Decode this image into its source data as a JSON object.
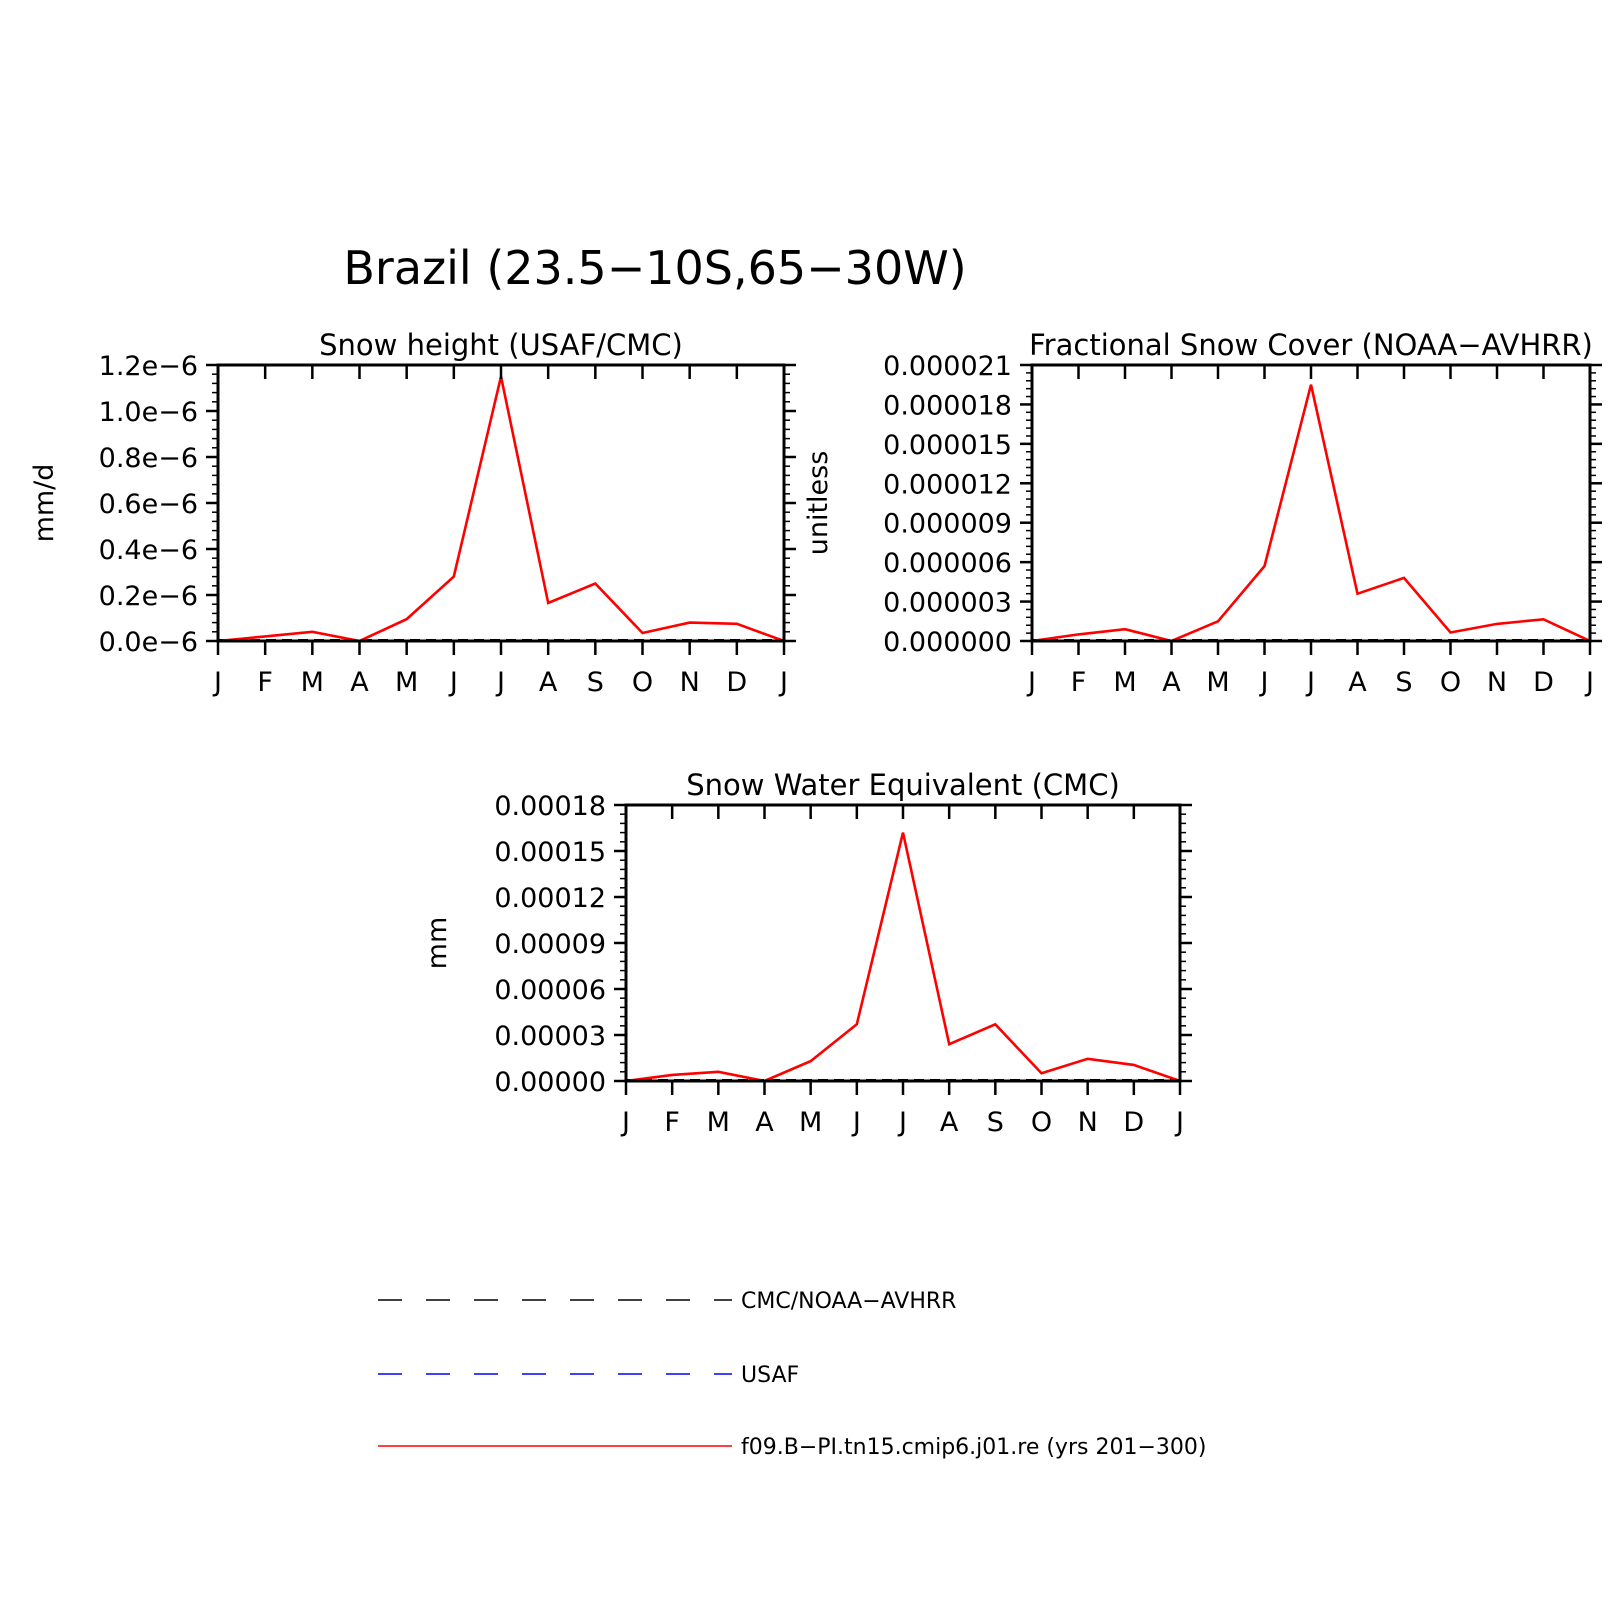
{
  "figure": {
    "title": "Brazil (23.5−10S,65−30W)"
  },
  "colors": {
    "model": "#ff0000",
    "cmc": "#000000",
    "usaf": "#0000ff"
  },
  "chart_data": [
    {
      "type": "line",
      "title": "Snow height (USAF/CMC)",
      "xlabel": "",
      "ylabel": "mm/d",
      "categories": [
        "J",
        "F",
        "M",
        "A",
        "M",
        "J",
        "J",
        "A",
        "S",
        "O",
        "N",
        "D",
        "J"
      ],
      "ylim": [
        0,
        1.2e-06
      ],
      "yticks": [
        "0.0e−6",
        "0.2e−6",
        "0.4e−6",
        "0.6e−6",
        "0.8e−6",
        "1.0e−6",
        "1.2e−6"
      ],
      "series": [
        {
          "name": "f09.B−PI.tn15.cmip6.j01.re (yrs 201−300)",
          "values": [
            0,
            2e-08,
            4e-08,
            0,
            9.5e-08,
            2.8e-07,
            1.15e-06,
            1.65e-07,
            2.5e-07,
            3.5e-08,
            8e-08,
            7.5e-08,
            0
          ]
        }
      ]
    },
    {
      "type": "line",
      "title": "Fractional Snow Cover (NOAA−AVHRR)",
      "xlabel": "",
      "ylabel": "unitless",
      "categories": [
        "J",
        "F",
        "M",
        "A",
        "M",
        "J",
        "J",
        "A",
        "S",
        "O",
        "N",
        "D",
        "J"
      ],
      "ylim": [
        0,
        2.1e-05
      ],
      "yticks": [
        "0.000000",
        "0.000003",
        "0.000006",
        "0.000009",
        "0.000012",
        "0.000015",
        "0.000018",
        "0.000021"
      ],
      "series": [
        {
          "name": "f09.B−PI.tn15.cmip6.j01.re (yrs 201−300)",
          "values": [
            0,
            5e-07,
            9e-07,
            0,
            1.5e-06,
            5.7e-06,
            1.95e-05,
            3.6e-06,
            4.8e-06,
            6.5e-07,
            1.3e-06,
            1.65e-06,
            0
          ]
        }
      ]
    },
    {
      "type": "line",
      "title": "Snow Water Equivalent (CMC)",
      "xlabel": "",
      "ylabel": "mm",
      "categories": [
        "J",
        "F",
        "M",
        "A",
        "M",
        "J",
        "J",
        "A",
        "S",
        "O",
        "N",
        "D",
        "J"
      ],
      "ylim": [
        0,
        0.00018
      ],
      "yticks": [
        "0.00000",
        "0.00003",
        "0.00006",
        "0.00009",
        "0.00012",
        "0.00015",
        "0.00018"
      ],
      "series": [
        {
          "name": "f09.B−PI.tn15.cmip6.j01.re (yrs 201−300)",
          "values": [
            0,
            4e-06,
            6e-06,
            0,
            1.3e-05,
            3.7e-05,
            0.000162,
            2.4e-05,
            3.7e-05,
            5e-06,
            1.45e-05,
            1.05e-05,
            0
          ]
        }
      ]
    }
  ],
  "legend": [
    {
      "label": "CMC/NOAA−AVHRR",
      "style": "dashed",
      "color": "#000000"
    },
    {
      "label": "USAF",
      "style": "dashed",
      "color": "#0000ff"
    },
    {
      "label": "f09.B−PI.tn15.cmip6.j01.re (yrs 201−300)",
      "style": "solid",
      "color": "#ff0000"
    }
  ]
}
